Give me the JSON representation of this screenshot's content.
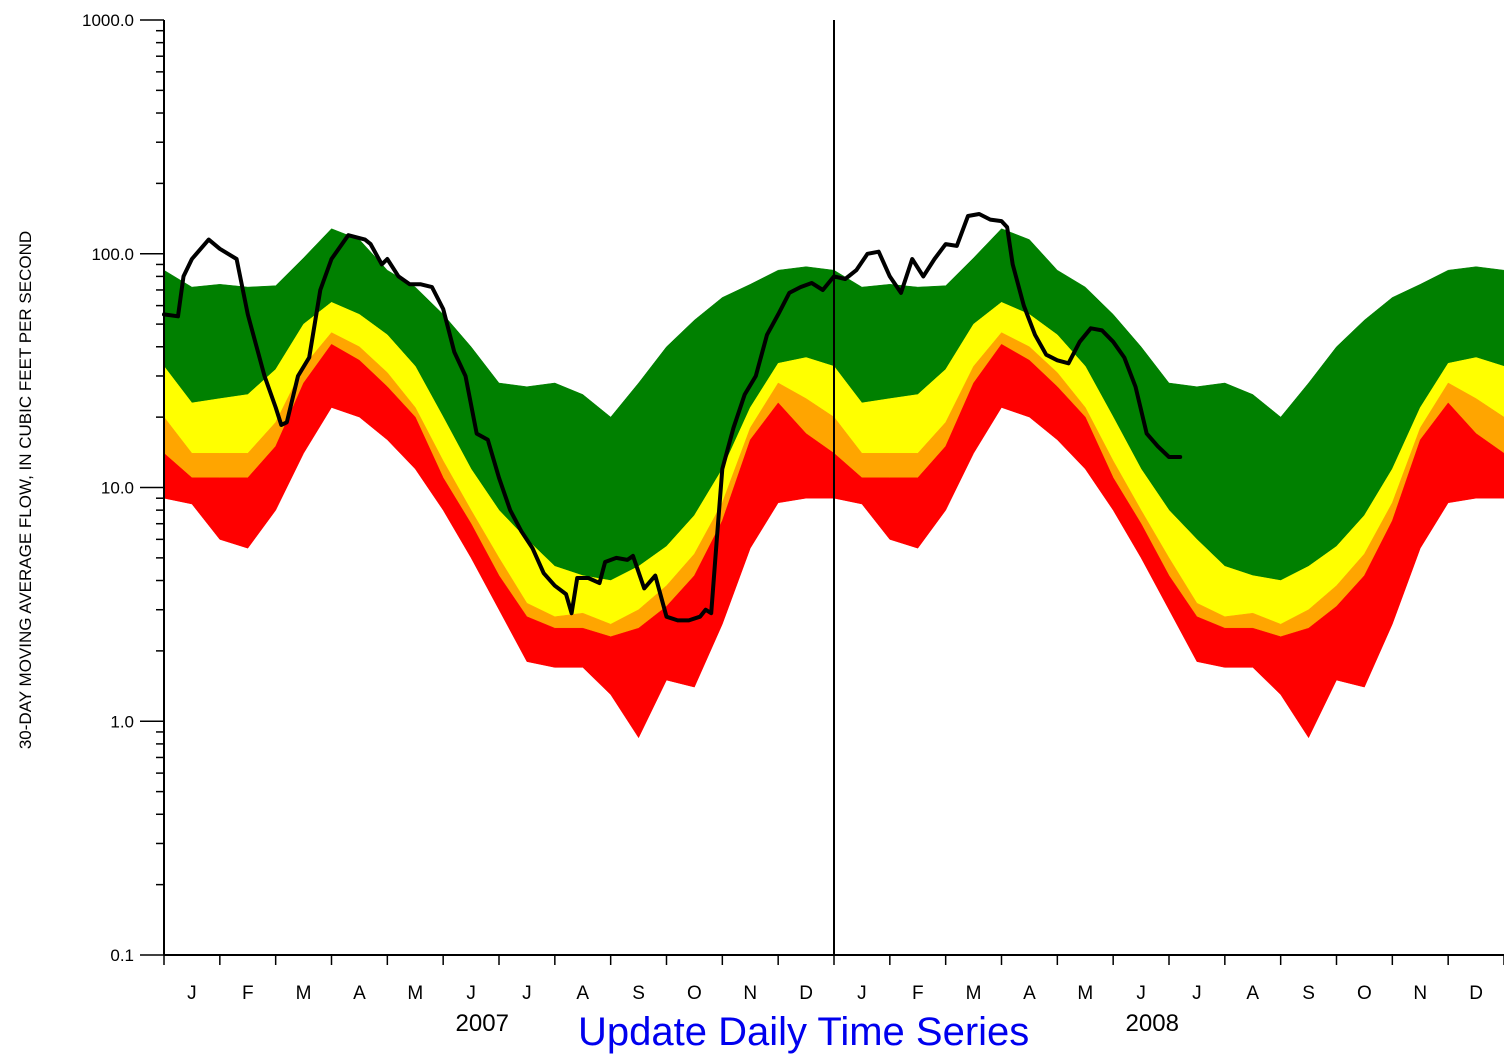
{
  "chart_data": {
    "type": "area",
    "ylabel": "30-DAY MOVING AVERAGE FLOW, IN CUBIC FEET PER SECOND",
    "yscale": "log",
    "ylim": [
      0.1,
      1000.0
    ],
    "yticks": [
      "1000.0",
      "100.0",
      "10.0",
      "1.0",
      "0.1"
    ],
    "ytick_values": [
      1000,
      100,
      10,
      1,
      0.1
    ],
    "xlim": [
      0,
      24
    ],
    "month_labels": [
      "J",
      "F",
      "M",
      "A",
      "M",
      "J",
      "J",
      "A",
      "S",
      "O",
      "N",
      "D",
      "J",
      "F",
      "M",
      "A",
      "M",
      "J",
      "J",
      "A",
      "S",
      "O",
      "N",
      "D"
    ],
    "year_labels": [
      {
        "label": "2007",
        "month_index": 5.7
      },
      {
        "label": "2008",
        "month_index": 17.7
      }
    ],
    "year_divider_month": 12,
    "band_colors": {
      "top_green": "#008000",
      "yellow": "#ffff00",
      "orange": "#ffa500",
      "red": "#ff0000"
    },
    "bands": {
      "x": [
        0,
        0.5,
        1,
        1.5,
        2,
        2.5,
        3,
        3.5,
        4,
        4.5,
        5,
        5.5,
        6,
        6.5,
        7,
        7.5,
        8,
        8.5,
        9,
        9.5,
        10,
        10.5,
        11,
        11.5,
        12
      ],
      "q_max": [
        85,
        72,
        74,
        72,
        73,
        96,
        128,
        115,
        85,
        72,
        55,
        40,
        28,
        27,
        28,
        25,
        20,
        28,
        40,
        52,
        65,
        74,
        85,
        88,
        85
      ],
      "q_p75": [
        33,
        23,
        24,
        25,
        32,
        50,
        62,
        55,
        45,
        33,
        20,
        12,
        8,
        6,
        4.6,
        4.2,
        4.0,
        4.6,
        5.6,
        7.6,
        12,
        22,
        34,
        36,
        33
      ],
      "q_p25": [
        20,
        14,
        14,
        14,
        19,
        33,
        46,
        40,
        31,
        22,
        13,
        8,
        5,
        3.2,
        2.8,
        2.9,
        2.6,
        3.0,
        3.8,
        5.2,
        8.6,
        18,
        28,
        24,
        20
      ],
      "q_p10": [
        14,
        11,
        11,
        11,
        15,
        28,
        41,
        35,
        27,
        20,
        11,
        7,
        4.2,
        2.8,
        2.5,
        2.5,
        2.3,
        2.5,
        3.1,
        4.2,
        7.2,
        16,
        23,
        17,
        14
      ],
      "q_min": [
        9,
        8.5,
        6,
        5.5,
        8,
        14,
        22,
        20,
        16,
        12,
        8,
        5,
        3,
        1.8,
        1.7,
        1.7,
        1.3,
        0.85,
        1.5,
        1.4,
        2.6,
        5.5,
        8.6,
        9.0,
        9
      ]
    },
    "series": [
      {
        "color": "#000000",
        "x": [
          0,
          0.25,
          0.35,
          0.5,
          0.8,
          1.0,
          1.3,
          1.5,
          1.8,
          2.0,
          2.1,
          2.2,
          2.4,
          2.6,
          2.8,
          3.0,
          3.3,
          3.6,
          3.7,
          3.9,
          4.0,
          4.2,
          4.4,
          4.6,
          4.8,
          5.0,
          5.2,
          5.4,
          5.6,
          5.8,
          6.0,
          6.2,
          6.4,
          6.6,
          6.8,
          7.0,
          7.2,
          7.3,
          7.4,
          7.6,
          7.8,
          7.9,
          8.1,
          8.3,
          8.4,
          8.6,
          8.8,
          9.0,
          9.2,
          9.4,
          9.6,
          9.7,
          9.8,
          9.9,
          10.0,
          10.2,
          10.4,
          10.6,
          10.8,
          11.0,
          11.2,
          11.4,
          11.6,
          11.8,
          12.0,
          12.2,
          12.4,
          12.6,
          12.8,
          13.0,
          13.2,
          13.4,
          13.6,
          13.8,
          14.0,
          14.2,
          14.4,
          14.6,
          14.8,
          15.0,
          15.1,
          15.2,
          15.4,
          15.6,
          15.8,
          16.0,
          16.2,
          16.4,
          16.6,
          16.8,
          17.0,
          17.2,
          17.4,
          17.6,
          17.8,
          18.0,
          18.2
        ],
        "y": [
          55,
          54,
          80,
          95,
          115,
          105,
          95,
          55,
          30,
          22,
          18.5,
          19,
          30,
          36,
          70,
          95,
          120,
          115,
          110,
          90,
          95,
          80,
          74,
          74,
          72,
          58,
          38,
          30,
          17,
          16,
          11,
          8,
          6.5,
          5.5,
          4.3,
          3.8,
          3.5,
          2.9,
          4.1,
          4.1,
          3.9,
          4.8,
          5.0,
          4.9,
          5.1,
          3.7,
          4.2,
          2.8,
          2.7,
          2.7,
          2.8,
          3.0,
          2.9,
          6,
          12,
          18,
          25,
          30,
          45,
          55,
          68,
          72,
          75,
          70,
          80,
          78,
          85,
          100,
          102,
          80,
          68,
          95,
          80,
          95,
          110,
          108,
          145,
          148,
          140,
          138,
          130,
          90,
          60,
          45,
          37,
          35,
          34,
          42,
          48,
          47,
          42,
          36,
          27,
          17,
          15,
          13.5,
          13.5
        ]
      }
    ]
  },
  "footer": {
    "link_text": "Update Daily Time Series"
  }
}
